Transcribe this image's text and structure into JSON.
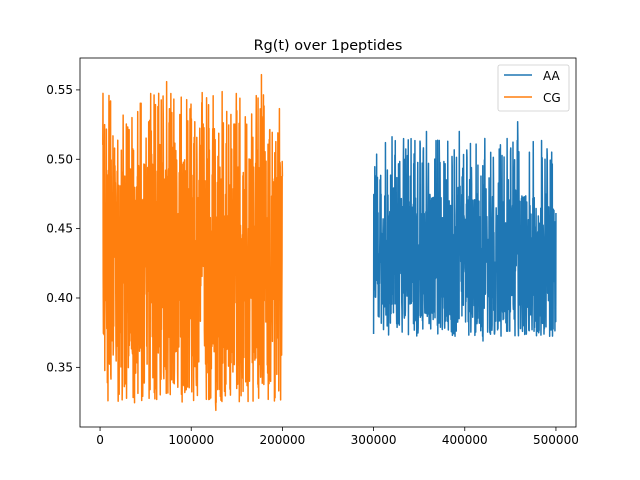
{
  "chart_data": {
    "type": "line",
    "title": "Rg(t) over 1peptides",
    "xlabel": "",
    "ylabel": "",
    "xlim": [
      -22000,
      522000
    ],
    "ylim": [
      0.307,
      0.573
    ],
    "xticks": [
      0,
      100000,
      200000,
      300000,
      400000,
      500000
    ],
    "xtick_labels": [
      "0",
      "100000",
      "200000",
      "300000",
      "400000",
      "500000"
    ],
    "yticks": [
      0.35,
      0.4,
      0.45,
      0.5,
      0.55
    ],
    "ytick_labels": [
      "0.35",
      "0.40",
      "0.45",
      "0.50",
      "0.55"
    ],
    "grid": false,
    "legend": {
      "placement": "top-right",
      "entries": [
        "AA",
        "CG"
      ]
    },
    "series": [
      {
        "name": "AA",
        "color": "#1f77b4",
        "x_range": [
          300000,
          500000
        ],
        "y_min": 0.369,
        "y_max": 0.527,
        "y_typical_band": [
          0.385,
          0.475
        ],
        "peak_values": [
          {
            "x": 302000,
            "y": 0.488
          },
          {
            "x": 313000,
            "y": 0.512
          },
          {
            "x": 338000,
            "y": 0.514
          },
          {
            "x": 358000,
            "y": 0.52
          },
          {
            "x": 394000,
            "y": 0.52
          },
          {
            "x": 422000,
            "y": 0.515
          },
          {
            "x": 458000,
            "y": 0.527
          },
          {
            "x": 488000,
            "y": 0.5
          }
        ],
        "trough_values": [
          {
            "x": 300000,
            "y": 0.374
          },
          {
            "x": 345000,
            "y": 0.383
          },
          {
            "x": 420000,
            "y": 0.369
          },
          {
            "x": 446000,
            "y": 0.376
          },
          {
            "x": 487000,
            "y": 0.378
          }
        ]
      },
      {
        "name": "CG",
        "color": "#ff7f0e",
        "x_range": [
          3000,
          200000
        ],
        "y_min": 0.319,
        "y_max": 0.561,
        "y_typical_band": [
          0.345,
          0.5
        ],
        "peak_values": [
          {
            "x": 5000,
            "y": 0.525
          },
          {
            "x": 35000,
            "y": 0.53
          },
          {
            "x": 73000,
            "y": 0.556
          },
          {
            "x": 95000,
            "y": 0.543
          },
          {
            "x": 112000,
            "y": 0.548
          },
          {
            "x": 150000,
            "y": 0.535
          },
          {
            "x": 177000,
            "y": 0.561
          },
          {
            "x": 195000,
            "y": 0.519
          }
        ],
        "trough_values": [
          {
            "x": 8000,
            "y": 0.339
          },
          {
            "x": 90000,
            "y": 0.325
          },
          {
            "x": 127000,
            "y": 0.319
          },
          {
            "x": 143000,
            "y": 0.33
          },
          {
            "x": 196000,
            "y": 0.333
          }
        ]
      }
    ]
  }
}
